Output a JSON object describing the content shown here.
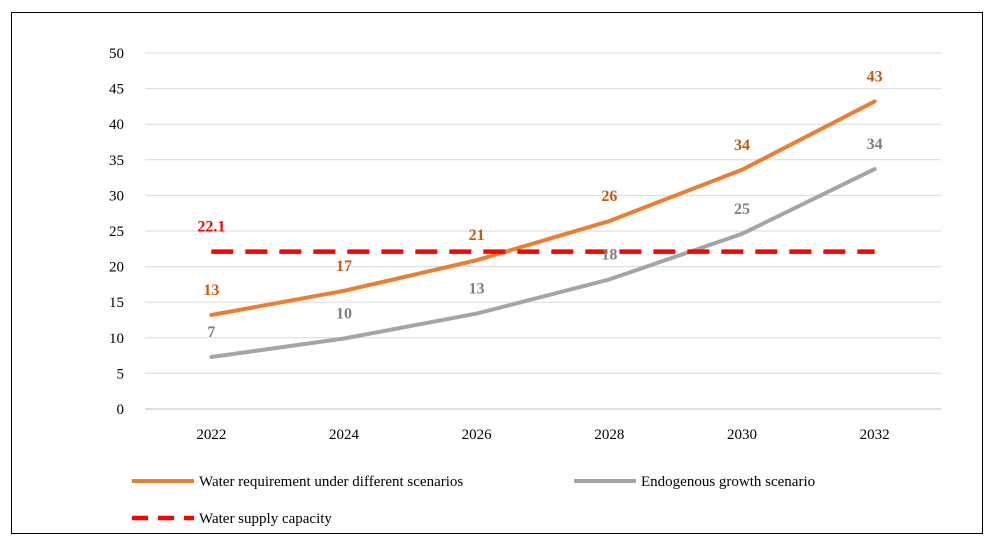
{
  "chart_data": {
    "type": "line",
    "title": "",
    "xlabel": "",
    "ylabel": "",
    "x": [
      "2022",
      "2024",
      "2026",
      "2028",
      "2030",
      "2032"
    ],
    "ylim": [
      0,
      50
    ],
    "yticks": [
      "0",
      "5",
      "10",
      "15",
      "20",
      "25",
      "30",
      "35",
      "40",
      "45",
      "50"
    ],
    "grid": "horizontal",
    "legend_position": "bottom",
    "series": [
      {
        "name": "Water requirement under different scenarios",
        "color": "#ED7D31",
        "style": "solid",
        "values": [
          13.2,
          16.6,
          20.9,
          26.4,
          33.6,
          43.2
        ],
        "labels": [
          "13",
          "17",
          "21",
          "26",
          "34",
          "43"
        ]
      },
      {
        "name": "Endogenous growth scenario",
        "color": "#A5A5A5",
        "style": "solid",
        "values": [
          7.3,
          9.9,
          13.4,
          18.2,
          24.6,
          33.7
        ],
        "labels": [
          "7",
          "10",
          "13",
          "18",
          "25",
          "34"
        ]
      },
      {
        "name": "Water supply capacity",
        "color": "#FF0000",
        "style": "dashed",
        "values": [
          22.1,
          22.1,
          22.1,
          22.1,
          22.1,
          22.1
        ],
        "labels": [
          "22.1",
          "",
          "",
          "",
          "",
          ""
        ]
      }
    ]
  }
}
